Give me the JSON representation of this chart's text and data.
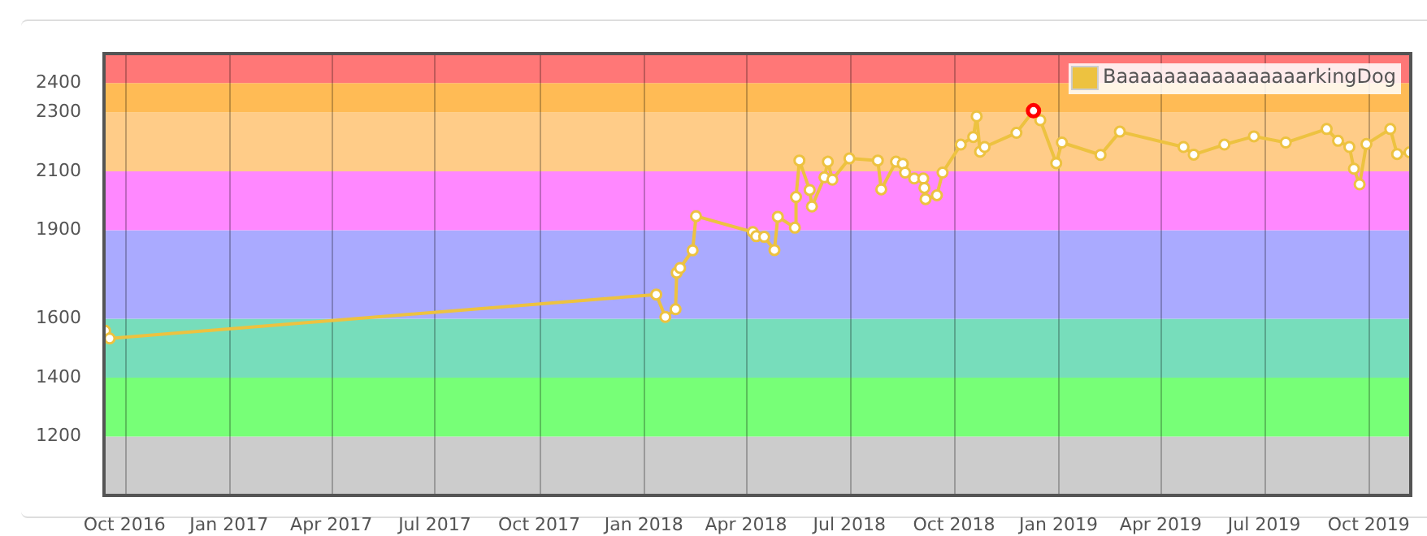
{
  "chart_data": {
    "type": "line",
    "x": [
      "2016-09-14",
      "2016-09-18",
      "2018-01-12",
      "2018-01-20",
      "2018-01-29",
      "2018-01-30",
      "2018-02-02",
      "2018-02-13",
      "2018-02-16",
      "2018-04-07",
      "2018-04-10",
      "2018-04-17",
      "2018-04-26",
      "2018-04-29",
      "2018-05-14",
      "2018-05-15",
      "2018-05-18",
      "2018-05-27",
      "2018-05-29",
      "2018-06-09",
      "2018-06-12",
      "2018-06-16",
      "2018-07-01",
      "2018-07-26",
      "2018-07-29",
      "2018-08-11",
      "2018-08-17",
      "2018-08-19",
      "2018-08-27",
      "2018-09-04",
      "2018-09-05",
      "2018-09-06",
      "2018-09-16",
      "2018-09-21",
      "2018-10-07",
      "2018-10-18",
      "2018-10-21",
      "2018-10-24",
      "2018-10-28",
      "2018-11-25",
      "2018-12-10",
      "2018-12-16",
      "2018-12-30",
      "2019-01-04",
      "2019-02-07",
      "2019-02-24",
      "2019-04-21",
      "2019-04-30",
      "2019-05-27",
      "2019-06-22",
      "2019-07-20",
      "2019-08-25",
      "2019-09-04",
      "2019-09-14",
      "2019-09-18",
      "2019-09-23",
      "2019-09-29",
      "2019-10-20",
      "2019-10-26",
      "2019-11-06"
    ],
    "series": [
      {
        "name": "BaaaaaaaaaaaaaaaarkingDog",
        "color": "#edc240",
        "values": [
          1559,
          1533,
          1682,
          1606,
          1632,
          1756,
          1772,
          1832,
          1948,
          1894,
          1880,
          1878,
          1833,
          1946,
          1909,
          2013,
          2137,
          2037,
          1981,
          2080,
          2133,
          2072,
          2144,
          2137,
          2039,
          2133,
          2126,
          2096,
          2076,
          2076,
          2044,
          2006,
          2019,
          2096,
          2191,
          2217,
          2287,
          2167,
          2183,
          2231,
          2306,
          2274,
          2128,
          2198,
          2156,
          2235,
          2183,
          2157,
          2191,
          2219,
          2198,
          2244,
          2204,
          2183,
          2109,
          2056,
          2193,
          2244,
          2159,
          2165
        ]
      },
      {
        "type": "scatter",
        "color": "#ff0000",
        "x": [
          "2018-12-10"
        ],
        "values": [
          2306
        ]
      }
    ],
    "xlim": [
      "2016-09-13",
      "2019-11-07"
    ],
    "xticks": [
      {
        "value": "2016-10",
        "label": "Oct 2016"
      },
      {
        "value": "2017-01",
        "label": "Jan 2017"
      },
      {
        "value": "2017-04",
        "label": "Apr 2017"
      },
      {
        "value": "2017-07",
        "label": "Jul 2017"
      },
      {
        "value": "2017-10",
        "label": "Oct 2017"
      },
      {
        "value": "2018-01",
        "label": "Jan 2018"
      },
      {
        "value": "2018-04",
        "label": "Apr 2018"
      },
      {
        "value": "2018-07",
        "label": "Jul 2018"
      },
      {
        "value": "2018-10",
        "label": "Oct 2018"
      },
      {
        "value": "2019-01",
        "label": "Jan 2019"
      },
      {
        "value": "2019-04",
        "label": "Apr 2019"
      },
      {
        "value": "2019-07",
        "label": "Jul 2019"
      },
      {
        "value": "2019-10",
        "label": "Oct 2019"
      }
    ],
    "ylim": [
      1000,
      2500
    ],
    "yticks": [
      1200,
      1400,
      1600,
      1900,
      2100,
      2300,
      2400
    ],
    "bands": [
      {
        "axis": "y",
        "from": 1000,
        "to": 1200,
        "color": "#cccccc"
      },
      {
        "axis": "y",
        "from": 1200,
        "to": 1400,
        "color": "#77ff77"
      },
      {
        "axis": "y",
        "from": 1400,
        "to": 1600,
        "color": "#77ddbb"
      },
      {
        "axis": "y",
        "from": 1600,
        "to": 1900,
        "color": "#aaaaff"
      },
      {
        "axis": "y",
        "from": 1900,
        "to": 2100,
        "color": "#ff88ff"
      },
      {
        "axis": "y",
        "from": 2100,
        "to": 2300,
        "color": "#ffcc88"
      },
      {
        "axis": "y",
        "from": 2300,
        "to": 2400,
        "color": "#ffbb55"
      },
      {
        "axis": "y",
        "from": 2400,
        "to": 2500,
        "color": "#ff7777"
      }
    ],
    "grid": "x",
    "legend": "top right",
    "marker": "circle",
    "line_style": "solid"
  }
}
